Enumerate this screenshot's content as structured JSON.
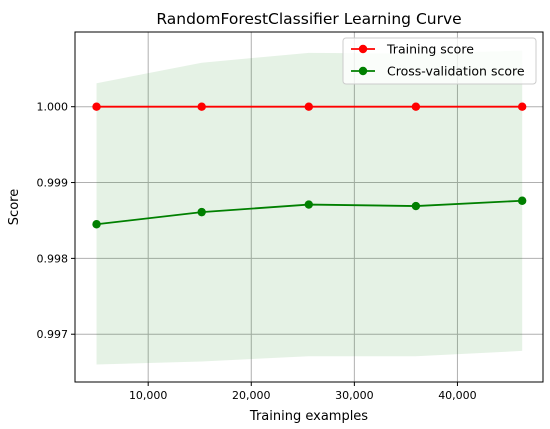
{
  "chart_data": {
    "type": "line",
    "title": "RandomForestClassifier Learning Curve",
    "xlabel": "Training examples",
    "ylabel": "Score",
    "xlim": [
      2900,
      48300
    ],
    "ylim": [
      0.99637,
      1.000985
    ],
    "x_ticks": [
      10000,
      20000,
      30000,
      40000
    ],
    "x_tick_labels": [
      "10,000",
      "20,000",
      "30,000",
      "40,000"
    ],
    "y_ticks": [
      0.997,
      0.998,
      0.999,
      1.0
    ],
    "y_tick_labels": [
      "0.997",
      "0.998",
      "0.999",
      "1.000"
    ],
    "grid": true,
    "legend_position": "top-right",
    "x": [
      4990,
      15190,
      25580,
      35970,
      46280
    ],
    "series": [
      {
        "name": "Training score",
        "color": "#ff0000",
        "values": [
          1.0,
          1.0,
          1.0,
          1.0,
          1.0
        ]
      },
      {
        "name": "Cross-validation score",
        "color": "#008000",
        "values": [
          0.99845,
          0.99861,
          0.99871,
          0.99869,
          0.99876
        ],
        "band_upper": [
          1.00031,
          1.00058,
          1.00071,
          1.0007,
          1.00074
        ],
        "band_lower": [
          0.9966,
          0.99664,
          0.99671,
          0.99671,
          0.99678
        ],
        "band_color": "#008000"
      }
    ]
  }
}
